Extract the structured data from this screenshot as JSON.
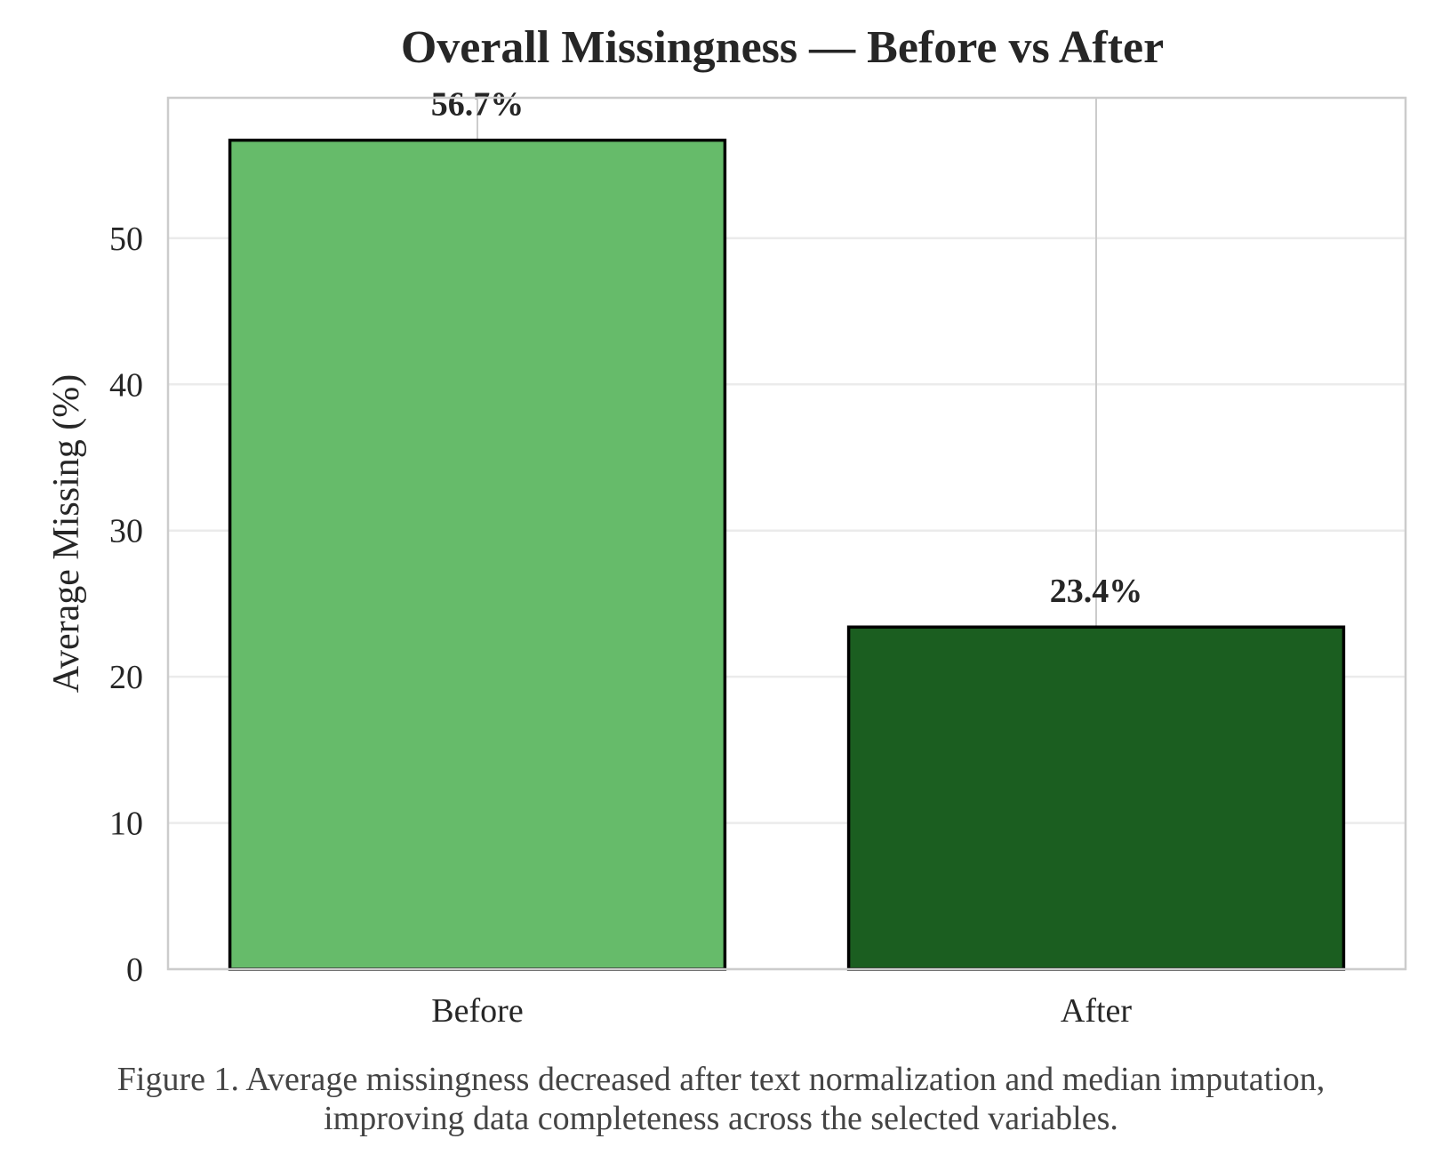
{
  "chart_data": {
    "type": "bar",
    "title": "Overall Missingness — Before vs After",
    "xlabel": "",
    "ylabel": "Average Missing (%)",
    "categories": [
      "Before",
      "After"
    ],
    "values": [
      56.7,
      23.4
    ],
    "data_labels": [
      "56.7%",
      "23.4%"
    ],
    "bar_colors": [
      "#66bb6a",
      "#1b5e20"
    ],
    "bar_edge_color": "#000000",
    "ylim": [
      0,
      59.6
    ],
    "yticks": [
      0,
      10,
      20,
      30,
      40,
      50
    ],
    "grid": true,
    "legend": "none"
  },
  "caption": {
    "line1": "Figure 1. Average missingness decreased after text normalization and median imputation,",
    "line2": "improving data completeness across the selected variables."
  }
}
